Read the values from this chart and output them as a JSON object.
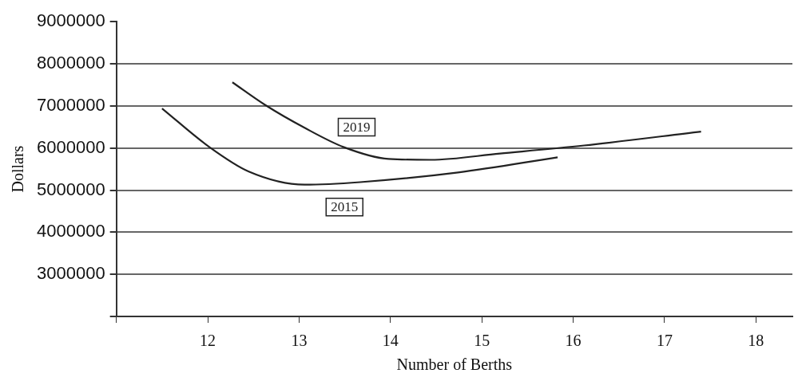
{
  "chart_data": {
    "type": "line",
    "xlabel": "Number of Berths",
    "ylabel": "Dollars",
    "xlim": [
      11,
      18.4
    ],
    "xticks": [
      {
        "value": 11,
        "label": null
      },
      12,
      13,
      14,
      15,
      16,
      17,
      18
    ],
    "ylim": [
      2000000,
      9000000
    ],
    "yticks": [
      {
        "value": 2000000,
        "label": null
      },
      3000000,
      4000000,
      5000000,
      6000000,
      7000000,
      8000000,
      9000000
    ],
    "grid": "y",
    "legend": false,
    "marker": "none",
    "line_style": "solid",
    "series": [
      {
        "name": "2015",
        "color": "#222222",
        "x": [
          11.5,
          12.02,
          12.45,
          13.06,
          13.67,
          14.74,
          15.83
        ],
        "values": [
          6940000,
          6020000,
          5440000,
          5130000,
          5190000,
          5420000,
          5780000
        ]
      },
      {
        "name": "2019",
        "color": "#222222",
        "x": [
          12.27,
          12.63,
          13.06,
          13.49,
          13.98,
          14.44,
          15.2,
          16.12,
          17.4
        ],
        "values": [
          7560000,
          7020000,
          6480000,
          6020000,
          5740000,
          5720000,
          5870000,
          6060000,
          6390000
        ]
      }
    ]
  }
}
